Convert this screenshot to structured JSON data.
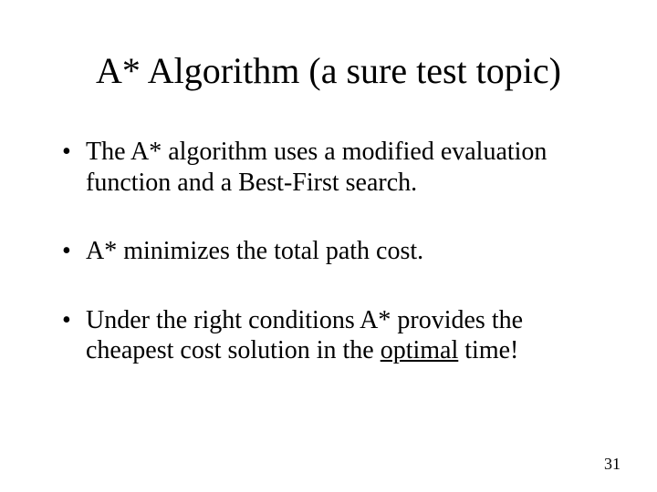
{
  "colors": {
    "background": "#ffffff",
    "text": "#000000"
  },
  "typography": {
    "font_family": "Times New Roman",
    "title_fontsize": 40,
    "body_fontsize": 28,
    "pagenum_fontsize": 18
  },
  "title": "A* Algorithm (a sure test topic)",
  "bullets": [
    {
      "prefix": "The A* algorithm uses a modified evaluation function and a Best-First search."
    },
    {
      "prefix": "A* minimizes the total path cost."
    },
    {
      "prefix": "Under the right conditions A* provides the cheapest cost solution in the ",
      "underlined": "optimal",
      "suffix": " time!"
    }
  ],
  "page_number": "31"
}
